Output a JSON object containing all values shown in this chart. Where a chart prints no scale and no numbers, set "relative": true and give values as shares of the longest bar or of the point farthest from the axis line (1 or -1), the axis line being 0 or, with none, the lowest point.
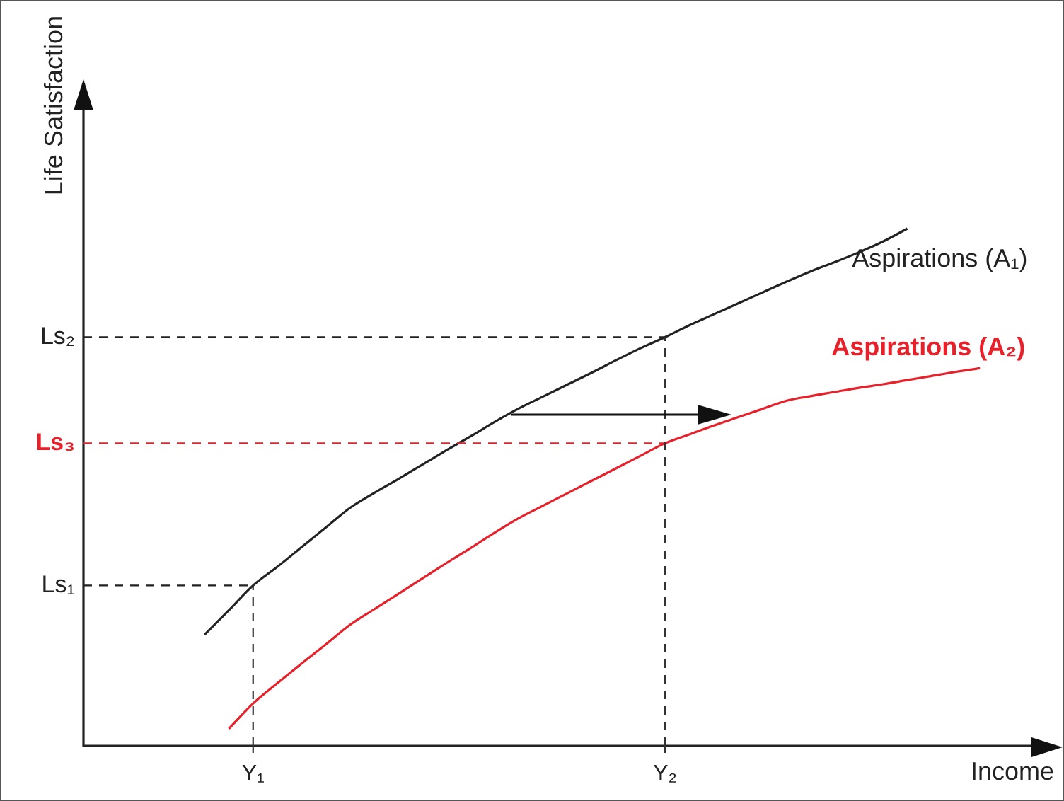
{
  "chart_data": {
    "type": "line",
    "relative": true,
    "xlabel": "Income",
    "ylabel": "Life Satisfaction",
    "legend": false,
    "marker": "none",
    "line_style": "solid",
    "categories": [
      null,
      null,
      null,
      null,
      null,
      null,
      null,
      "Y₁",
      null,
      null,
      null,
      null,
      null,
      null,
      null,
      null,
      null,
      null,
      null,
      null,
      null,
      null,
      null,
      null,
      "Y₂",
      null,
      null,
      null,
      null,
      null,
      null,
      null,
      null,
      null,
      null,
      null,
      null,
      null,
      null,
      null,
      null
    ],
    "series": [
      {
        "name": "Aspirations (A₁)",
        "color": "#222222",
        "values": [
          null,
          null,
          null,
          null,
          null,
          0.215,
          0.262,
          0.31,
          0.346,
          0.384,
          0.422,
          0.46,
          0.489,
          0.516,
          0.544,
          0.572,
          0.599,
          0.627,
          0.653,
          0.676,
          0.699,
          0.722,
          0.746,
          0.769,
          0.79,
          0.813,
          0.834,
          0.855,
          0.876,
          0.897,
          0.917,
          0.935,
          0.954,
          0.975,
          1.0,
          null,
          null,
          null,
          null,
          null,
          null
        ]
      },
      {
        "name": "Aspirations (A₂)",
        "color": "#e8202a",
        "values": [
          null,
          null,
          null,
          null,
          null,
          null,
          0.033,
          0.082,
          0.121,
          0.159,
          0.196,
          0.234,
          0.264,
          0.294,
          0.324,
          0.354,
          0.383,
          0.413,
          0.441,
          0.465,
          0.489,
          0.513,
          0.537,
          0.561,
          0.585,
          0.602,
          0.619,
          0.635,
          0.651,
          0.667,
          0.676,
          0.684,
          0.692,
          0.699,
          0.707,
          0.715,
          0.723,
          0.73,
          null,
          null,
          null
        ]
      }
    ],
    "ref_lines": [
      {
        "axis": "y",
        "value": 0.79,
        "label": "Ls₂",
        "color": "#222222",
        "line_style": "dashed"
      },
      {
        "axis": "y",
        "value": 0.585,
        "label": "Ls₃",
        "color": "#e8202a",
        "line_style": "dashed"
      },
      {
        "axis": "y",
        "value": 0.31,
        "label": "Ls₁",
        "color": "#222222",
        "line_style": "dashed"
      },
      {
        "axis": "x",
        "value": "Y₁",
        "color": "#333333",
        "line_style": "dashed"
      },
      {
        "axis": "x",
        "value": "Y₂",
        "color": "#333333",
        "line_style": "dashed"
      }
    ]
  }
}
